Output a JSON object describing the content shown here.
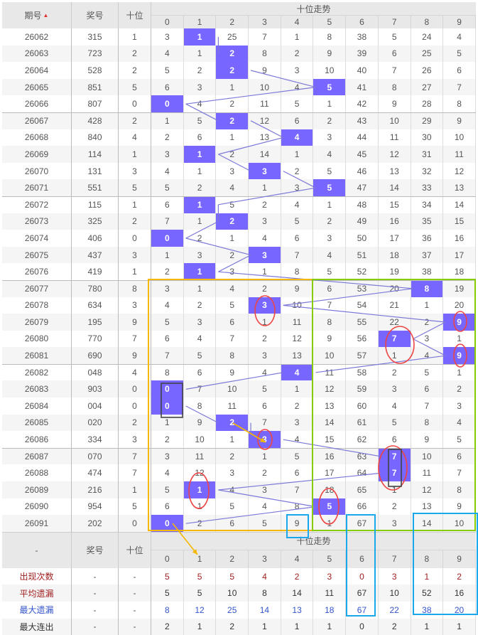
{
  "header": {
    "period": "期号",
    "sort_icon": "sort-arrows-icon",
    "number": "奖号",
    "tens": "十位",
    "trend": "十位走势",
    "digits": [
      "0",
      "1",
      "2",
      "3",
      "4",
      "5",
      "6",
      "7",
      "8",
      "9"
    ]
  },
  "colors": {
    "hit": "#7766ff",
    "line": "#7c78d8",
    "yellow_box": "#f5b800",
    "green_box": "#88cc00",
    "blue_box": "#1aa7ec",
    "red_circle": "#ee4444"
  },
  "rows": [
    {
      "period": "26062",
      "number": "315",
      "tens": 1,
      "miss": [
        3,
        1,
        25,
        7,
        1,
        8,
        38,
        5,
        24,
        4
      ]
    },
    {
      "period": "26063",
      "number": "723",
      "tens": 2,
      "miss": [
        4,
        1,
        2,
        8,
        2,
        9,
        39,
        6,
        25,
        5
      ]
    },
    {
      "period": "26064",
      "number": "528",
      "tens": 2,
      "miss": [
        5,
        2,
        2,
        9,
        3,
        10,
        40,
        7,
        26,
        6
      ]
    },
    {
      "period": "26065",
      "number": "851",
      "tens": 5,
      "miss": [
        6,
        3,
        1,
        10,
        4,
        5,
        41,
        8,
        27,
        7
      ]
    },
    {
      "period": "26066",
      "number": "807",
      "tens": 0,
      "miss": [
        0,
        4,
        2,
        11,
        5,
        1,
        42,
        9,
        28,
        8
      ]
    },
    {
      "period": "26067",
      "number": "428",
      "tens": 2,
      "miss": [
        1,
        5,
        2,
        12,
        6,
        2,
        43,
        10,
        29,
        9
      ]
    },
    {
      "period": "26068",
      "number": "840",
      "tens": 4,
      "miss": [
        2,
        6,
        1,
        13,
        4,
        3,
        44,
        11,
        30,
        10
      ]
    },
    {
      "period": "26069",
      "number": "114",
      "tens": 1,
      "miss": [
        3,
        1,
        2,
        14,
        1,
        4,
        45,
        12,
        31,
        11
      ]
    },
    {
      "period": "26070",
      "number": "131",
      "tens": 3,
      "miss": [
        4,
        1,
        3,
        3,
        2,
        5,
        46,
        13,
        32,
        12
      ]
    },
    {
      "period": "26071",
      "number": "551",
      "tens": 5,
      "miss": [
        5,
        2,
        4,
        1,
        3,
        5,
        47,
        14,
        33,
        13
      ]
    },
    {
      "period": "26072",
      "number": "115",
      "tens": 1,
      "miss": [
        6,
        1,
        5,
        2,
        4,
        1,
        48,
        15,
        34,
        14
      ]
    },
    {
      "period": "26073",
      "number": "325",
      "tens": 2,
      "miss": [
        7,
        1,
        2,
        3,
        5,
        2,
        49,
        16,
        35,
        15
      ]
    },
    {
      "period": "26074",
      "number": "406",
      "tens": 0,
      "miss": [
        0,
        2,
        1,
        4,
        6,
        3,
        50,
        17,
        36,
        16
      ]
    },
    {
      "period": "26075",
      "number": "437",
      "tens": 3,
      "miss": [
        1,
        3,
        2,
        3,
        7,
        4,
        51,
        18,
        37,
        17
      ]
    },
    {
      "period": "26076",
      "number": "419",
      "tens": 1,
      "miss": [
        2,
        1,
        3,
        1,
        8,
        5,
        52,
        19,
        38,
        18
      ]
    },
    {
      "period": "26077",
      "number": "780",
      "tens": 8,
      "miss": [
        3,
        1,
        4,
        2,
        9,
        6,
        53,
        20,
        8,
        19
      ]
    },
    {
      "period": "26078",
      "number": "634",
      "tens": 3,
      "miss": [
        4,
        2,
        5,
        3,
        10,
        7,
        54,
        21,
        1,
        20
      ]
    },
    {
      "period": "26079",
      "number": "195",
      "tens": 9,
      "miss": [
        5,
        3,
        6,
        1,
        11,
        8,
        55,
        22,
        2,
        9
      ]
    },
    {
      "period": "26080",
      "number": "770",
      "tens": 7,
      "miss": [
        6,
        4,
        7,
        2,
        12,
        9,
        56,
        7,
        3,
        1
      ]
    },
    {
      "period": "26081",
      "number": "690",
      "tens": 9,
      "miss": [
        7,
        5,
        8,
        3,
        13,
        10,
        57,
        1,
        4,
        9
      ]
    },
    {
      "period": "26082",
      "number": "048",
      "tens": 4,
      "miss": [
        8,
        6,
        9,
        4,
        4,
        11,
        58,
        2,
        5,
        1
      ]
    },
    {
      "period": "26083",
      "number": "903",
      "tens": 0,
      "miss": [
        0,
        7,
        10,
        5,
        1,
        12,
        59,
        3,
        6,
        2
      ]
    },
    {
      "period": "26084",
      "number": "004",
      "tens": 0,
      "miss": [
        0,
        8,
        11,
        6,
        2,
        13,
        60,
        4,
        7,
        3
      ]
    },
    {
      "period": "26085",
      "number": "020",
      "tens": 2,
      "miss": [
        1,
        9,
        2,
        7,
        3,
        14,
        61,
        5,
        8,
        4
      ]
    },
    {
      "period": "26086",
      "number": "334",
      "tens": 3,
      "miss": [
        2,
        10,
        1,
        3,
        4,
        15,
        62,
        6,
        9,
        5
      ]
    },
    {
      "period": "26087",
      "number": "070",
      "tens": 7,
      "miss": [
        3,
        11,
        2,
        1,
        5,
        16,
        63,
        7,
        10,
        6
      ]
    },
    {
      "period": "26088",
      "number": "474",
      "tens": 7,
      "miss": [
        4,
        12,
        3,
        2,
        6,
        17,
        64,
        7,
        11,
        7
      ]
    },
    {
      "period": "26089",
      "number": "216",
      "tens": 1,
      "miss": [
        5,
        1,
        4,
        3,
        7,
        18,
        65,
        1,
        12,
        8
      ]
    },
    {
      "period": "26090",
      "number": "954",
      "tens": 5,
      "miss": [
        6,
        1,
        5,
        4,
        8,
        5,
        66,
        2,
        13,
        9
      ]
    },
    {
      "period": "26091",
      "number": "202",
      "tens": 0,
      "miss": [
        0,
        2,
        6,
        5,
        9,
        1,
        67,
        3,
        14,
        10
      ]
    }
  ],
  "footer_header": {
    "period": "-",
    "number": "奖号",
    "tens": "十位",
    "trend": "十位走势",
    "digits": [
      "0",
      "1",
      "2",
      "3",
      "4",
      "5",
      "6",
      "7",
      "8",
      "9"
    ]
  },
  "stats": [
    {
      "label": "出现次数",
      "number": "-",
      "tens": "-",
      "values": [
        5,
        5,
        5,
        4,
        2,
        3,
        0,
        3,
        1,
        2
      ],
      "style": "red"
    },
    {
      "label": "平均遗漏",
      "number": "-",
      "tens": "-",
      "values": [
        5,
        5,
        10,
        8,
        14,
        11,
        67,
        10,
        52,
        16
      ],
      "style": "brown"
    },
    {
      "label": "最大遗漏",
      "number": "-",
      "tens": "-",
      "values": [
        8,
        12,
        25,
        14,
        13,
        18,
        67,
        22,
        38,
        20
      ],
      "style": "blue"
    },
    {
      "label": "最大连出",
      "number": "-",
      "tens": "-",
      "values": [
        2,
        1,
        2,
        1,
        1,
        1,
        0,
        2,
        1,
        1
      ],
      "style": "dark"
    }
  ]
}
